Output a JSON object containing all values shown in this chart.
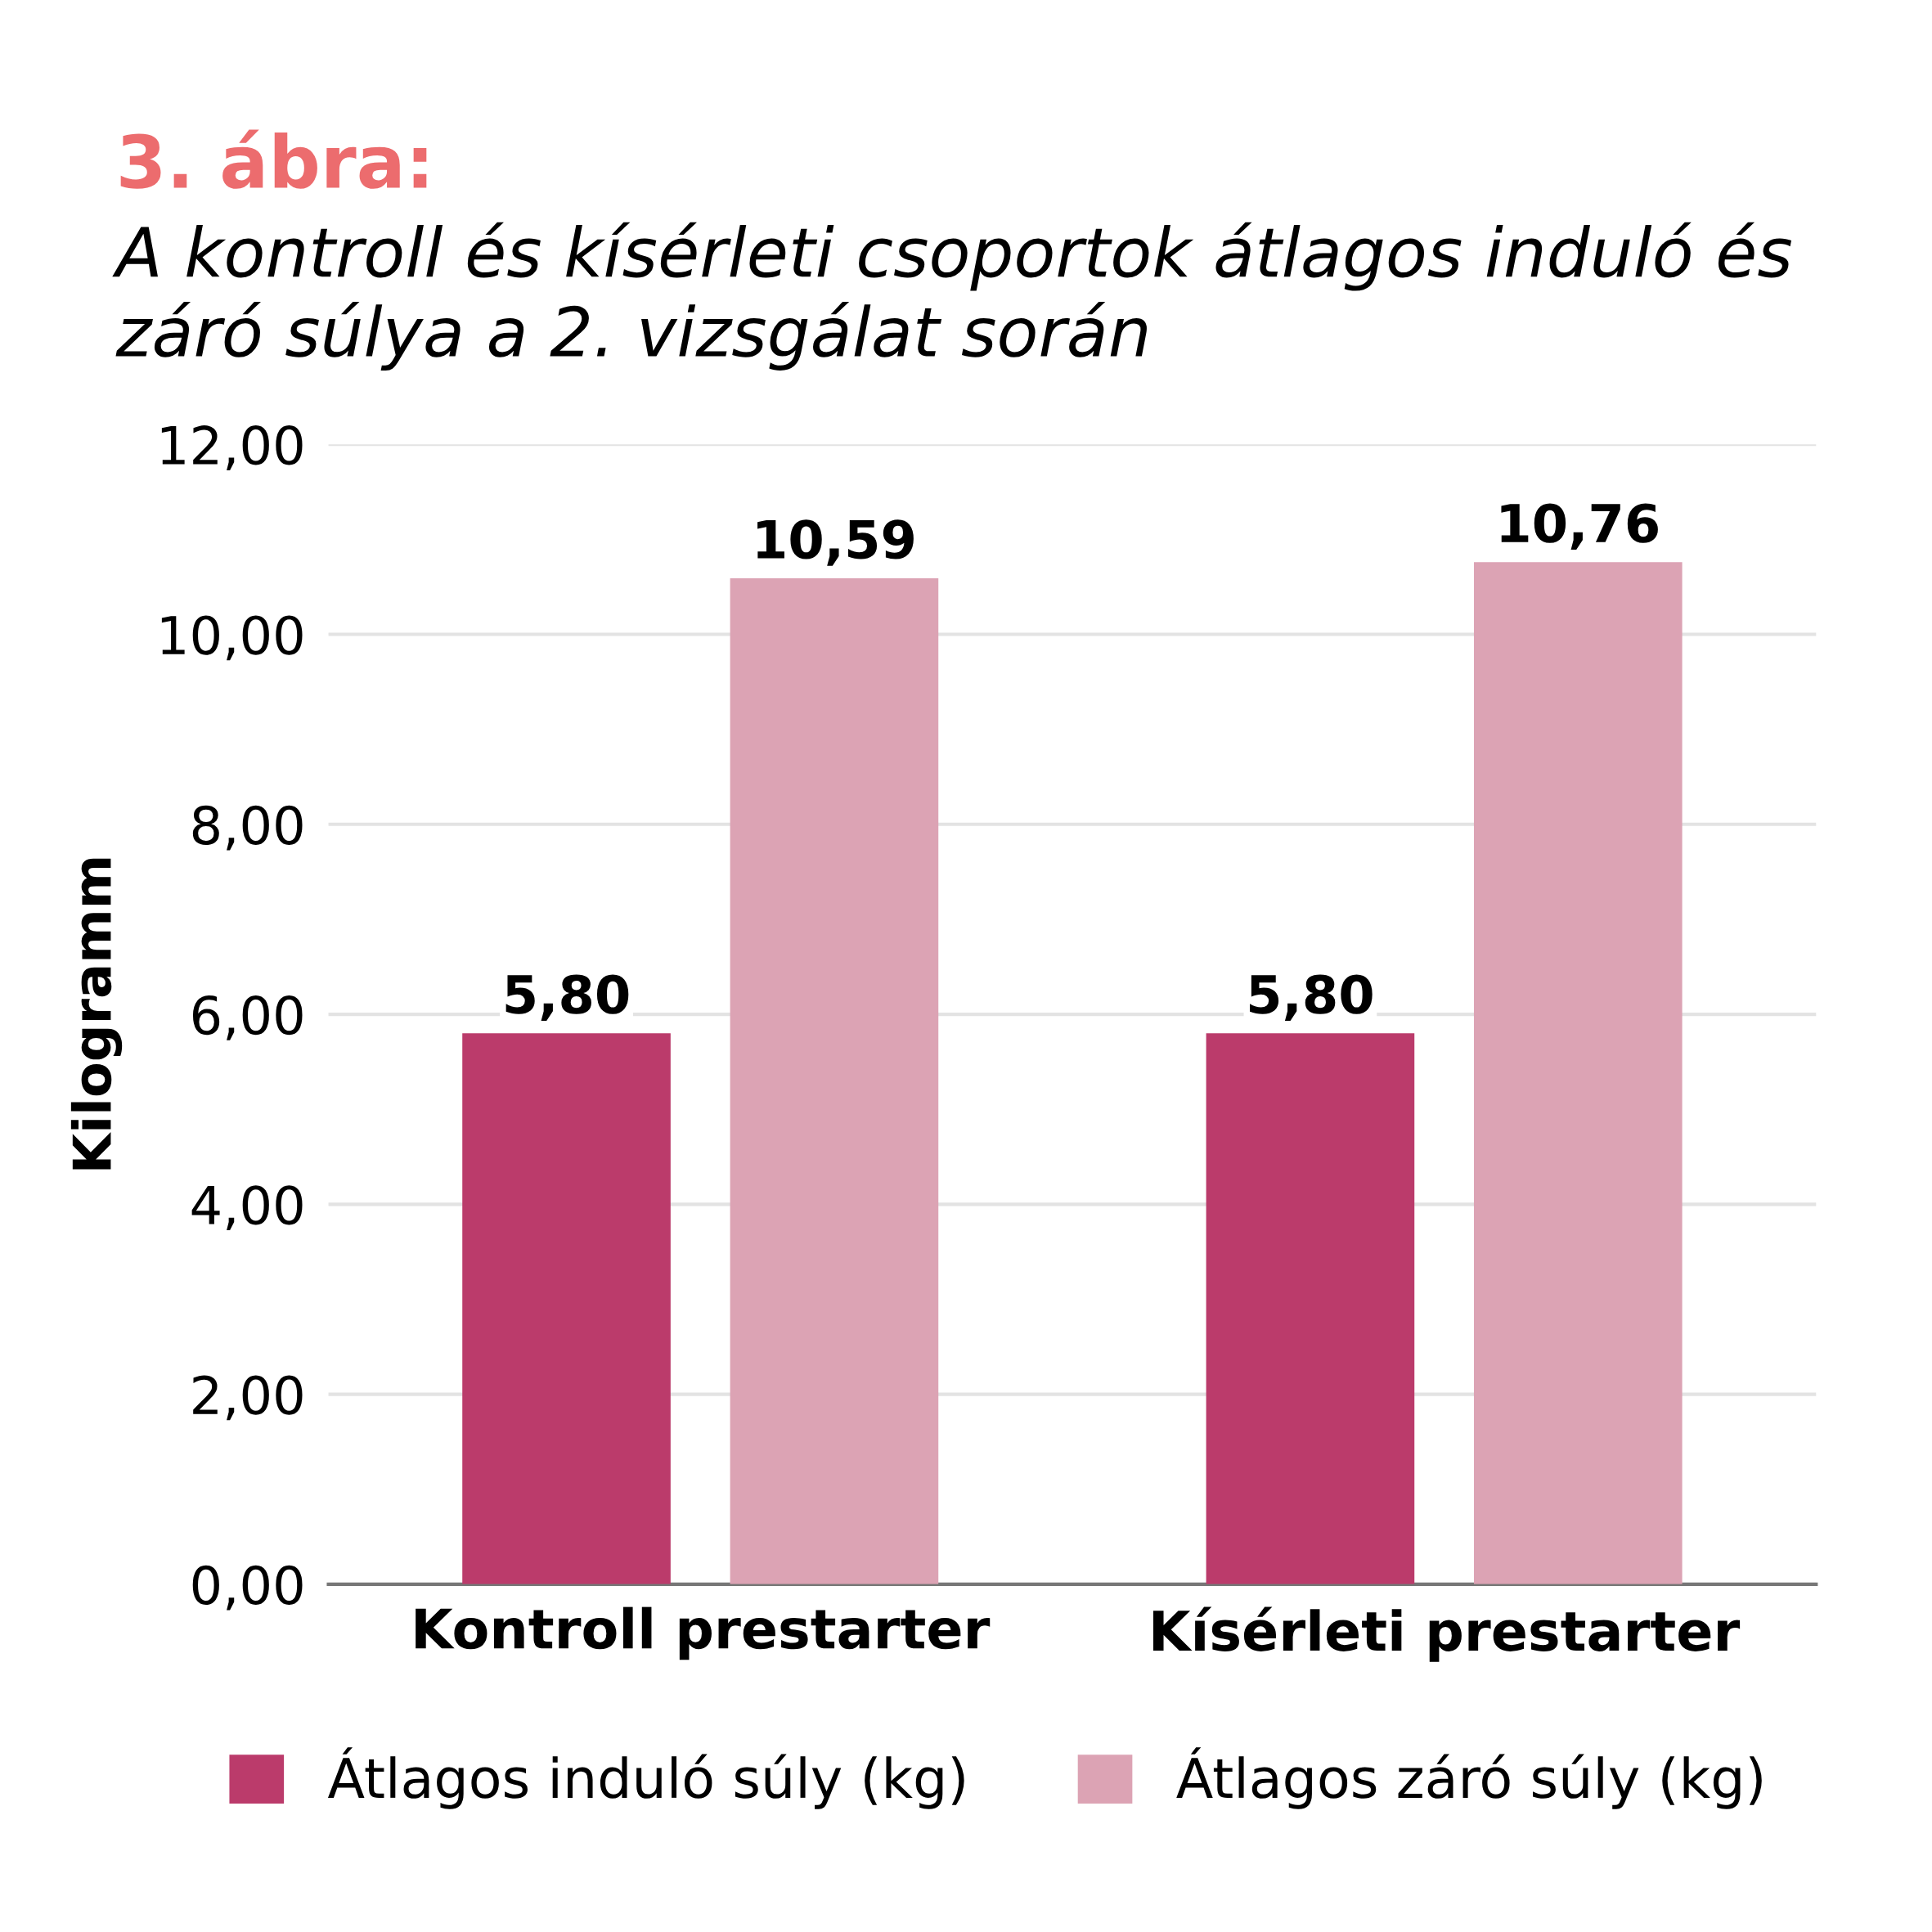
{
  "chart_data": {
    "type": "bar",
    "title": "3. ábra:",
    "subtitle": "A kontroll és kísérleti csoportok átlagos induló és záró súlya a 2. vizsgálat során",
    "ylabel": "Kilogramm",
    "categories": [
      "Kontroll prestarter",
      "Kísérleti prestarter"
    ],
    "series": [
      {
        "name": "Átlagos induló súly (kg)",
        "color": "#bb3b6b",
        "values": [
          5.8,
          5.8
        ],
        "value_labels": [
          "5,80",
          "5,80"
        ]
      },
      {
        "name": "Átlagos záró súly (kg)",
        "color": "#dca3b4",
        "values": [
          10.59,
          10.76
        ],
        "value_labels": [
          "10,59",
          "10,76"
        ]
      }
    ],
    "ylim": [
      0,
      12
    ],
    "yticks": [
      {
        "value": 0,
        "label": "0,00"
      },
      {
        "value": 2,
        "label": "2,00"
      },
      {
        "value": 4,
        "label": "4,00"
      },
      {
        "value": 6,
        "label": "6,00"
      },
      {
        "value": 8,
        "label": "8,00"
      },
      {
        "value": 10,
        "label": "10,00"
      },
      {
        "value": 12,
        "label": "12,00"
      }
    ],
    "grid": "y",
    "legend": "bottom"
  }
}
